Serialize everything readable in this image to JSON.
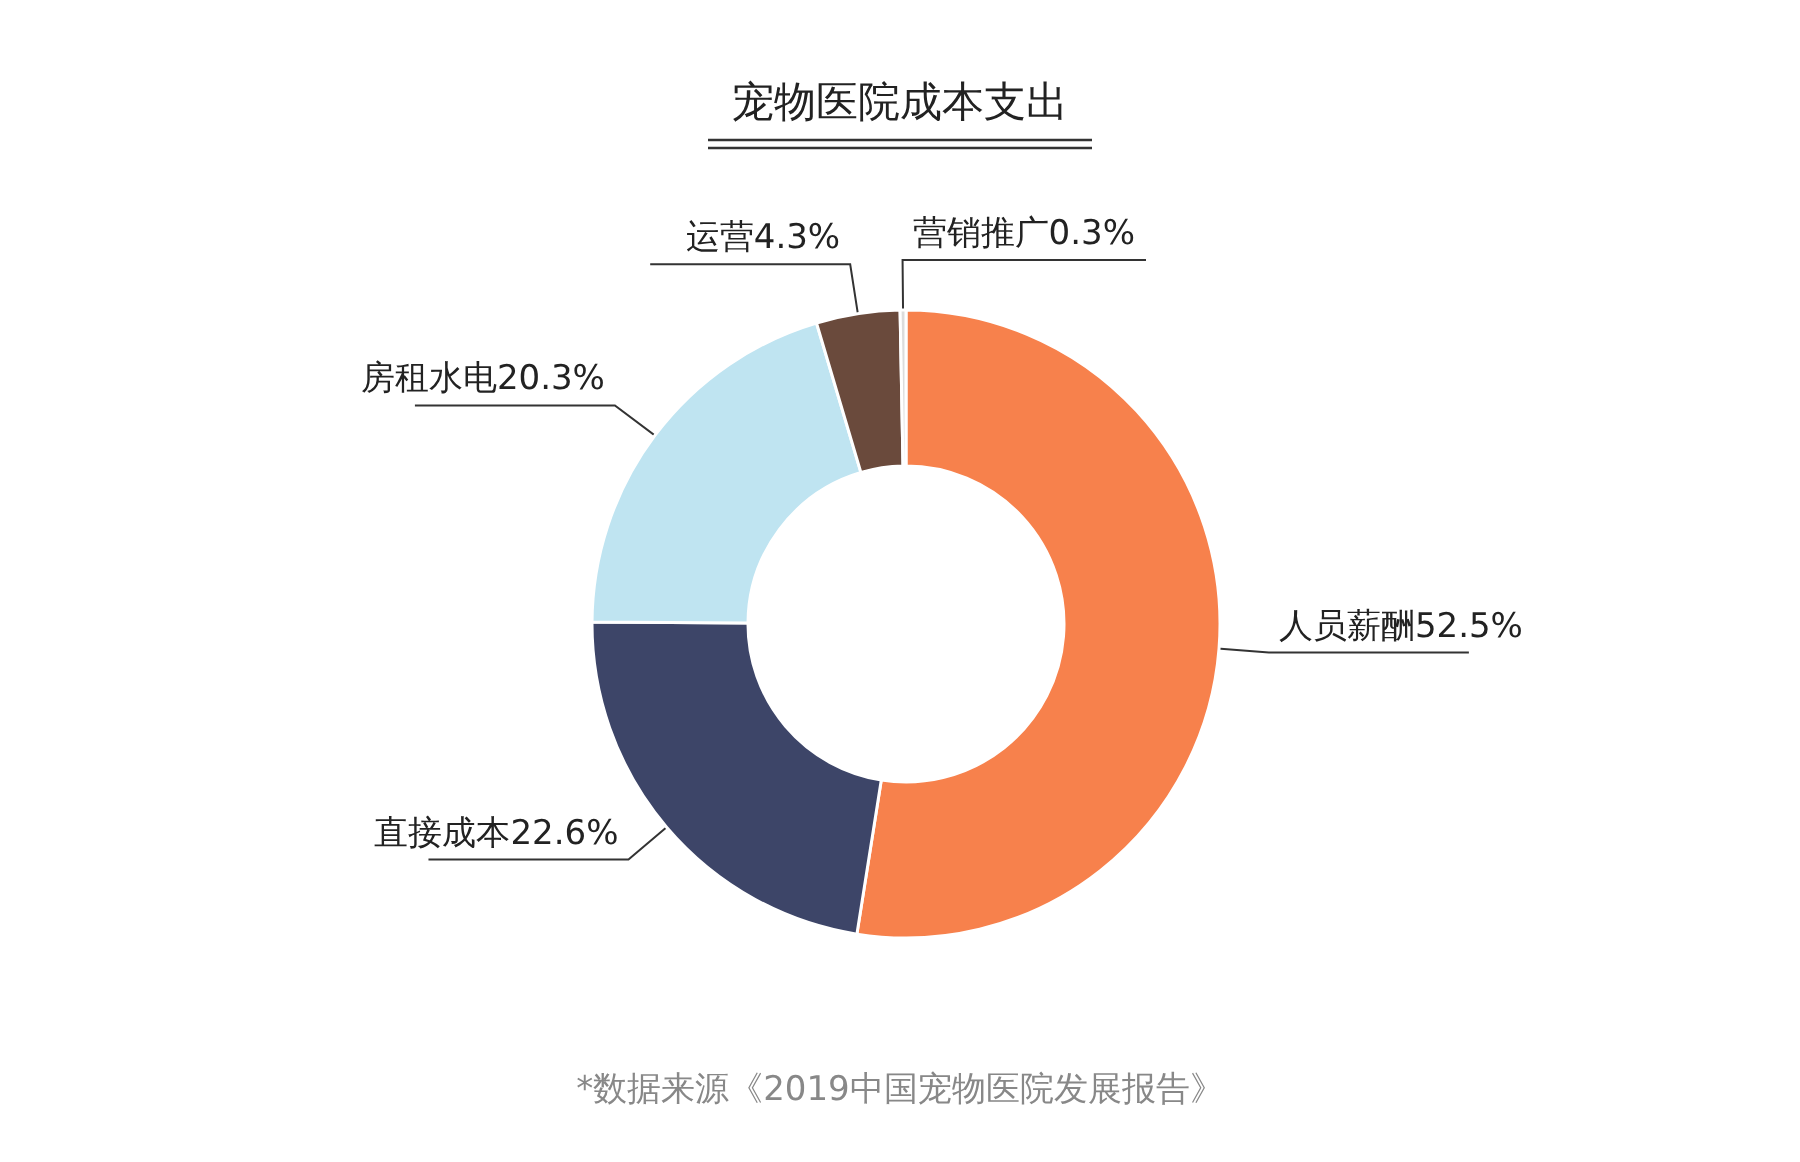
{
  "chart_data": {
    "type": "donut",
    "title": "宠物医院成本支出",
    "categories": [
      "人员薪酬",
      "直接成本",
      "房租水电",
      "运营",
      "营销推广"
    ],
    "values": [
      52.5,
      22.6,
      20.3,
      4.3,
      0.3
    ],
    "value_labels": [
      "52.5%",
      "22.6%",
      "20.3%",
      "4.3%",
      "0.3%"
    ],
    "colors": [
      "#f7814c",
      "#3d4568",
      "#bfe4f1",
      "#6a4a3c",
      "#dcdcdc"
    ],
    "annotations": [
      "*数据来源《2019中国宠物医院发展报告》"
    ]
  }
}
